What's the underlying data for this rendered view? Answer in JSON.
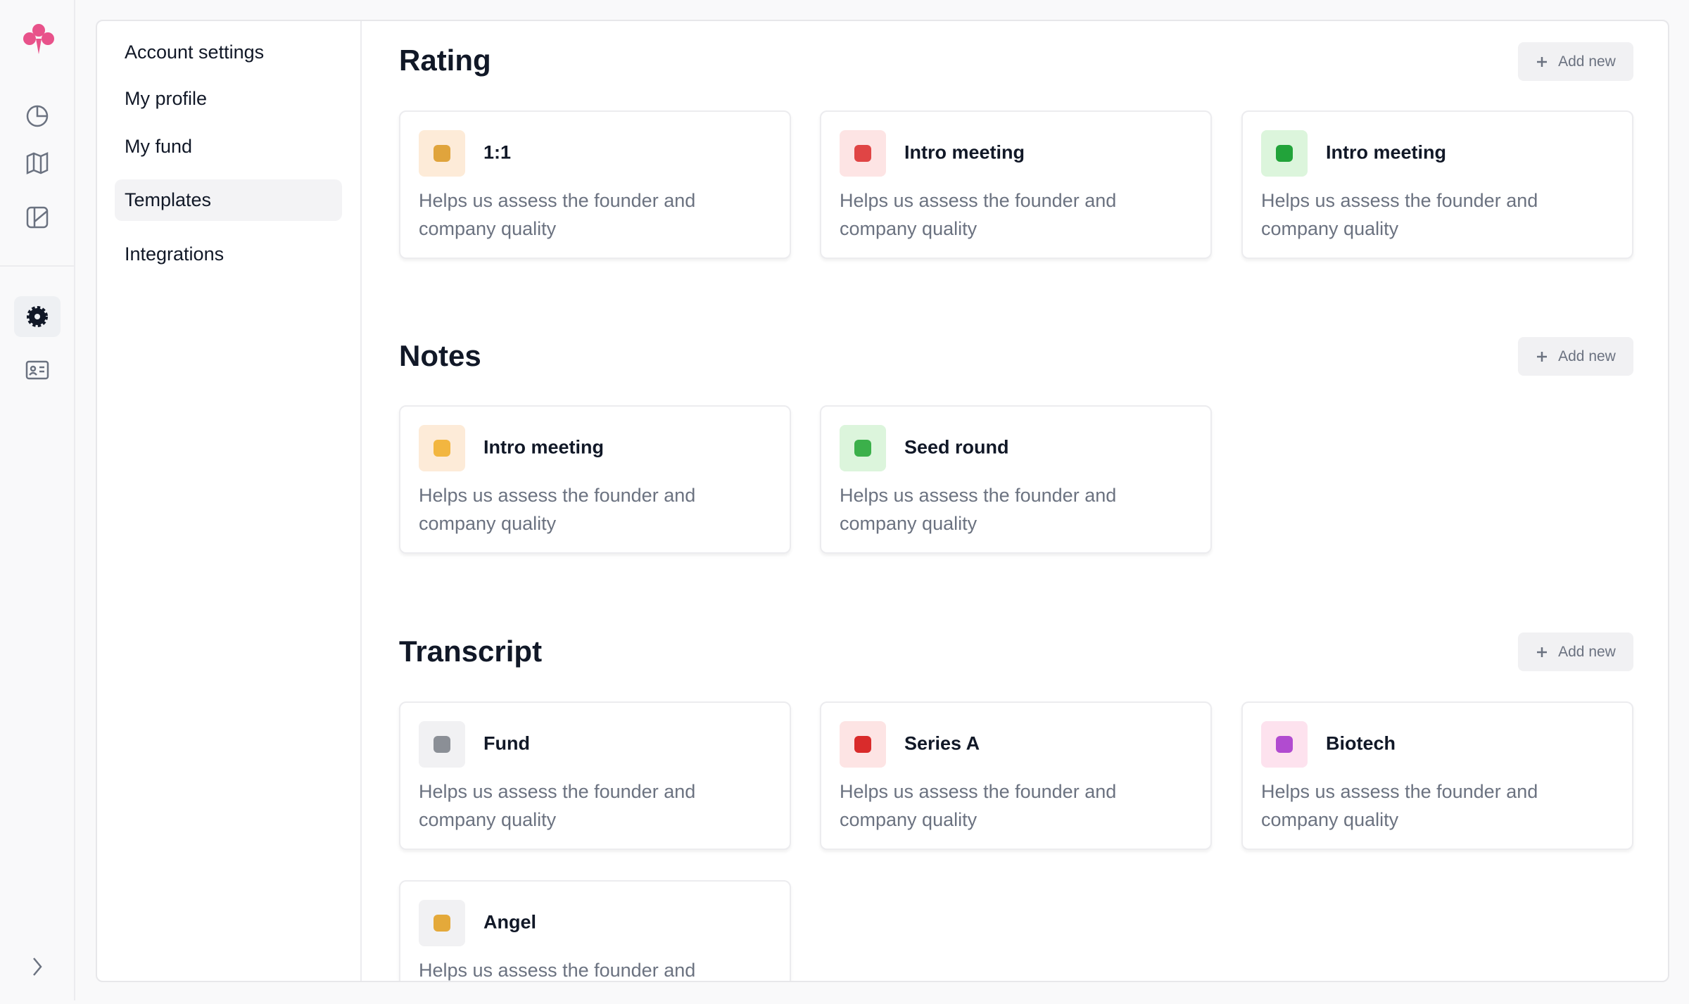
{
  "nav": {
    "items": [
      "Account settings",
      "My profile",
      "My fund",
      "Templates",
      "Integrations"
    ],
    "active": 3
  },
  "sections": [
    {
      "title": "Rating",
      "button": "Add new",
      "cards": [
        {
          "title": "1:1",
          "description": "Helps us assess the founder and company quality"
        },
        {
          "title": "Intro meeting",
          "description": "Helps us assess the founder and company quality"
        },
        {
          "title": "Intro meeting",
          "description": "Helps us assess the founder and company quality"
        }
      ]
    },
    {
      "title": "Notes",
      "button": "Add new",
      "cards": [
        {
          "title": "Intro meeting",
          "description": "Helps us assess the founder and company quality"
        },
        {
          "title": "Seed round",
          "description": "Helps us assess the founder and company quality"
        }
      ]
    },
    {
      "title": "Transcript",
      "button": "Add new",
      "cards": [
        {
          "title": "Fund",
          "description": "Helps us assess the founder and company quality"
        },
        {
          "title": "Series A",
          "description": "Helps us assess the founder and company quality"
        },
        {
          "title": "Biotech",
          "description": "Helps us assess the founder and company quality"
        },
        {
          "title": "Angel",
          "description": "Helps us assess the founder and company quality"
        }
      ]
    }
  ]
}
